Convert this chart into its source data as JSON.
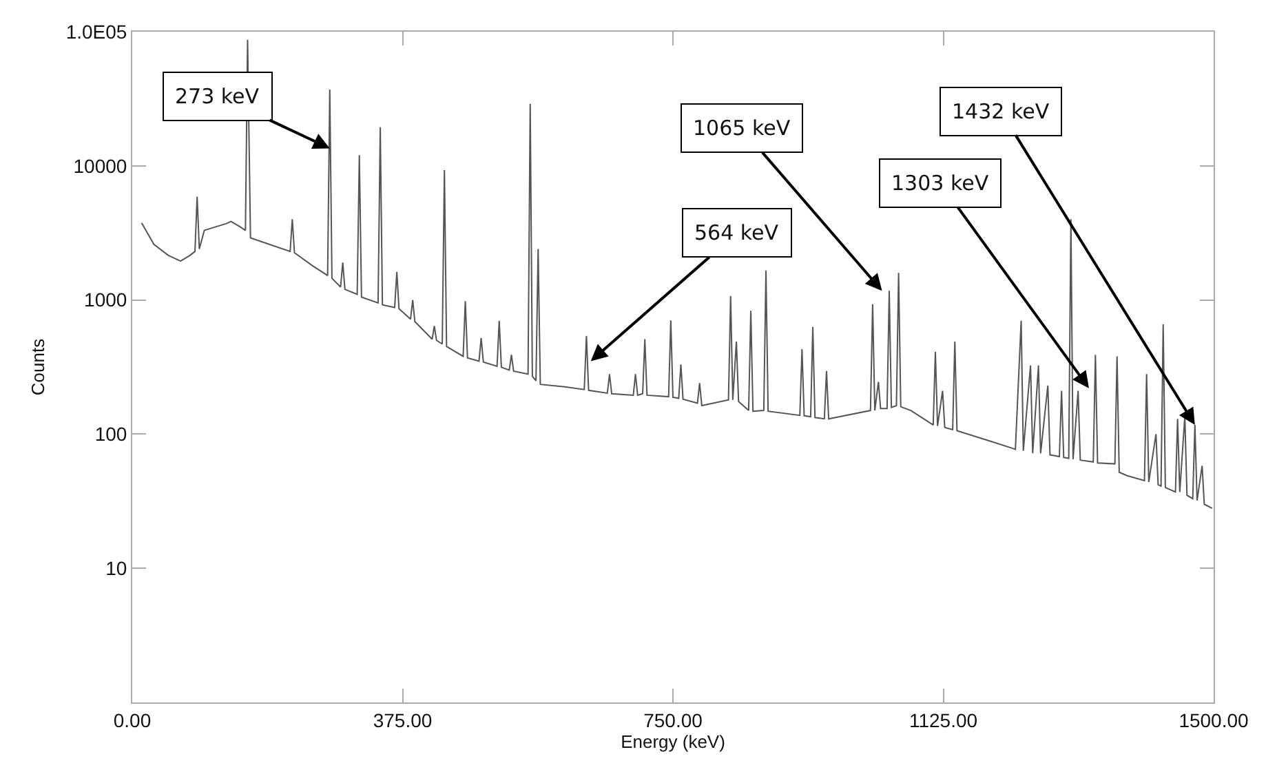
{
  "chart_data": {
    "type": "line",
    "xlabel": "Energy (keV)",
    "ylabel": "Counts",
    "log": "y",
    "marker": "none",
    "line_style": "solid",
    "xlim": [
      0,
      1500
    ],
    "xticks": [
      {
        "value": 0,
        "label": "0.00"
      },
      {
        "value": 375,
        "label": "375.00"
      },
      {
        "value": 750,
        "label": "750.00"
      },
      {
        "value": 1125,
        "label": "1125.00"
      },
      {
        "value": 1500,
        "label": "1500.00"
      }
    ],
    "ylim": [
      1,
      100000
    ],
    "yticks": [
      10,
      100,
      1000,
      10000,
      {
        "value": 100000,
        "label": "1.0E05"
      }
    ],
    "series": [
      {
        "color": "#555555",
        "x": [
          13,
          30,
          50,
          67,
          80,
          87,
          90,
          93,
          100,
          115,
          130,
          137,
          150,
          157,
          160,
          164,
          190,
          219,
          222,
          225,
          250,
          271,
          274,
          277,
          289,
          292,
          295,
          312,
          315,
          318,
          341,
          344,
          347,
          364,
          367,
          370,
          386,
          389,
          392,
          416,
          419,
          422,
          430,
          433,
          436,
          459,
          462,
          465,
          481,
          484,
          487,
          506,
          509,
          512,
          523,
          526,
          529,
          549,
          552,
          555,
          560,
          563,
          566,
          600,
          627,
          630,
          633,
          659,
          662,
          665,
          695,
          698,
          701,
          708,
          711,
          714,
          744,
          747,
          750,
          758,
          761,
          764,
          784,
          787,
          790,
          827,
          830,
          833,
          838,
          841,
          855,
          858,
          861,
          876,
          879,
          882,
          926,
          929,
          932,
          941,
          944,
          947,
          960,
          963,
          966,
          1024,
          1027,
          1030,
          1035,
          1038,
          1047,
          1050,
          1053,
          1060,
          1063,
          1066,
          1080,
          1111,
          1114,
          1117,
          1124,
          1127,
          1138,
          1141,
          1144,
          1195,
          1222,
          1225,
          1233,
          1236,
          1246,
          1249,
          1257,
          1260,
          1270,
          1273,
          1286,
          1289,
          1292,
          1299,
          1302,
          1305,
          1312,
          1315,
          1333,
          1336,
          1339,
          1363,
          1366,
          1369,
          1380,
          1404,
          1407,
          1410,
          1420,
          1423,
          1427,
          1430,
          1433,
          1447,
          1450,
          1453,
          1460,
          1463,
          1471,
          1474,
          1477,
          1484,
          1487,
          1498
        ],
        "values": [
          3750,
          2600,
          2150,
          1950,
          2150,
          2300,
          5900,
          2400,
          3300,
          3500,
          3700,
          3850,
          3500,
          3300,
          87000,
          2900,
          2600,
          2300,
          4000,
          2250,
          1800,
          1520,
          37000,
          1450,
          1250,
          1900,
          1200,
          1100,
          12000,
          1050,
          950,
          19400,
          920,
          880,
          1620,
          860,
          720,
          1000,
          690,
          510,
          640,
          500,
          470,
          9300,
          450,
          380,
          980,
          370,
          350,
          520,
          345,
          320,
          700,
          315,
          300,
          390,
          295,
          280,
          29000,
          270,
          250,
          2400,
          235,
          225,
          215,
          540,
          212,
          202,
          280,
          200,
          195,
          280,
          195,
          200,
          510,
          195,
          190,
          705,
          188,
          185,
          330,
          182,
          170,
          240,
          163,
          180,
          1070,
          180,
          490,
          175,
          150,
          830,
          148,
          150,
          1660,
          148,
          138,
          430,
          137,
          135,
          630,
          133,
          130,
          295,
          130,
          150,
          930,
          150,
          245,
          155,
          155,
          1170,
          158,
          163,
          1590,
          160,
          150,
          117,
          410,
          115,
          210,
          112,
          108,
          490,
          106,
          87,
          78,
          77,
          700,
          75,
          325,
          72,
          325,
          72,
          230,
          70,
          68,
          210,
          67,
          66,
          4000,
          65,
          210,
          64,
          62,
          390,
          61,
          60,
          380,
          52,
          49,
          45,
          280,
          44,
          100,
          42,
          41,
          660,
          40,
          37,
          130,
          37,
          135,
          35,
          33,
          117,
          32,
          58,
          30,
          28
        ]
      }
    ],
    "annotations": [
      {
        "text": "273 keV",
        "x": 274,
        "y": 13500
      },
      {
        "text": "564 keV",
        "x": 636,
        "y": 350
      },
      {
        "text": "1065 keV",
        "x": 1040,
        "y": 1170
      },
      {
        "text": "1303 keV",
        "x": 1327,
        "y": 220
      },
      {
        "text": "1432 keV",
        "x": 1474,
        "y": 117
      }
    ]
  }
}
